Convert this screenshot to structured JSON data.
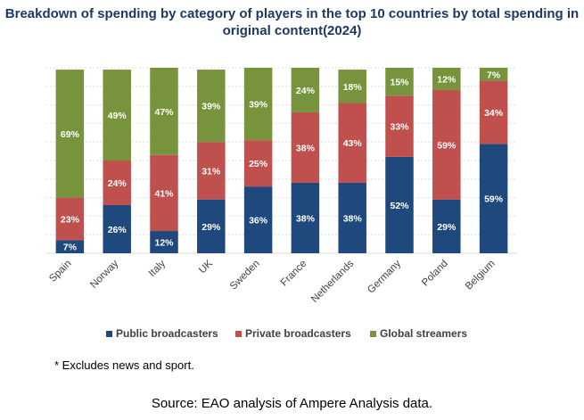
{
  "chart_data": {
    "type": "bar",
    "stacked": true,
    "title": "Breakdown of spending by category of players in the top 10 countries by total spending in original content(2024)",
    "categories": [
      "Spain",
      "Norway",
      "Italy",
      "UK",
      "Sweden",
      "France",
      "Netherlands",
      "Germany",
      "Poland",
      "Belgium"
    ],
    "series": [
      {
        "name": "Public broadcasters",
        "color": "#1f497d",
        "label_color": "#ffffff",
        "values": [
          7,
          26,
          12,
          29,
          36,
          38,
          38,
          52,
          29,
          59
        ]
      },
      {
        "name": "Private broadcasters",
        "color": "#c0504d",
        "label_color": "#ffffff",
        "values": [
          23,
          24,
          41,
          31,
          25,
          38,
          43,
          33,
          59,
          34
        ]
      },
      {
        "name": "Global streamers",
        "color": "#77933c",
        "label_color": "#ffffff",
        "values": [
          69,
          49,
          47,
          39,
          39,
          24,
          18,
          15,
          12,
          7
        ]
      }
    ],
    "value_suffix": "%",
    "ylim": [
      0,
      100
    ],
    "xlabel": "",
    "ylabel": "",
    "grid": true,
    "legend_position": "bottom"
  },
  "footnote": "* Excludes news and sport.",
  "source": "Source: EAO analysis of Ampere Analysis data."
}
